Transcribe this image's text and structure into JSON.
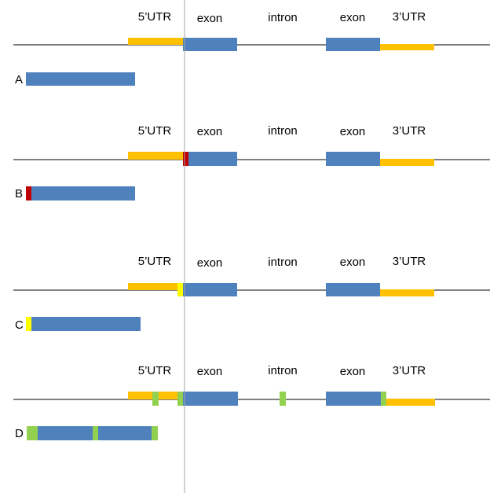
{
  "colors": {
    "utr": "#FFC000",
    "exon": "#4F81BD",
    "red": "#C00000",
    "yellow": "#FFFF00",
    "green": "#92D050",
    "line": "#000000",
    "guide": "#A6A6A6"
  },
  "panels": [
    {
      "id": "A",
      "row_label": "A",
      "labels": {
        "utr5": "5’UTR",
        "exon1": "exon",
        "intron": "intron",
        "exon2": "exon",
        "utr3": "3’UTR"
      }
    },
    {
      "id": "B",
      "row_label": "B",
      "labels": {
        "utr5": "5’UTR",
        "exon1": "exon",
        "intron": "intron",
        "exon2": "exon",
        "utr3": "3’UTR"
      }
    },
    {
      "id": "C",
      "row_label": "C",
      "labels": {
        "utr5": "5’UTR",
        "exon1": "exon",
        "intron": "intron",
        "exon2": "exon",
        "utr3": "3’UTR"
      }
    },
    {
      "id": "D",
      "row_label": "D",
      "labels": {
        "utr5": "5’UTR",
        "exon1": "exon",
        "intron": "intron",
        "exon2": "exon",
        "utr3": "3’UTR"
      }
    }
  ]
}
